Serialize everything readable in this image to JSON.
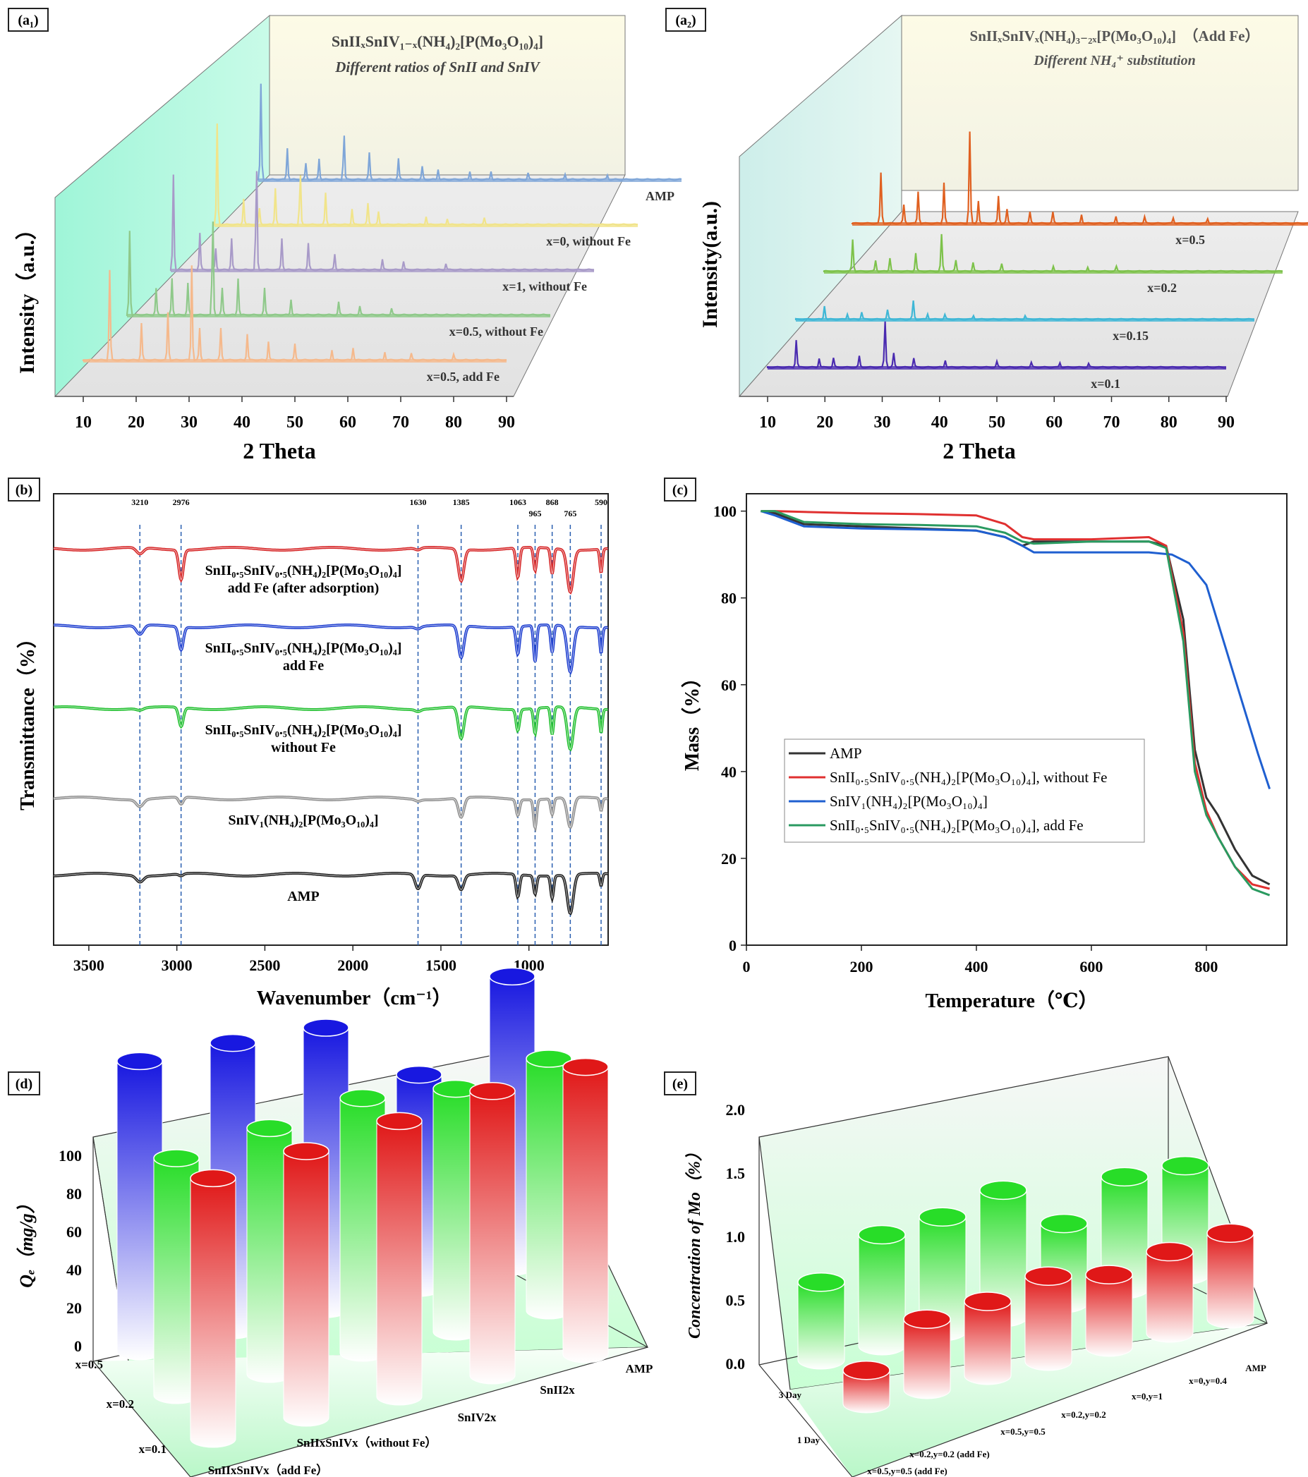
{
  "panels": {
    "a1": {
      "tag": "(a₁)",
      "title": "SnIIₓSnIV₁₋ₓ(NH₄)₂[P(Mo₃O₁₀)₄]",
      "subtitle": "Different ratios of SnII and SnIV",
      "xlabel": "2 Theta",
      "ylabel": "Intensity（a.u.）"
    },
    "a2": {
      "tag": "(a₂)",
      "title": "SnIIₓSnIVₓ(NH₄)₃₋₂ₓ[P(Mo₃O₁₀)₄]　（Add  Fe）",
      "subtitle": "Different NH₄⁺ substitution",
      "xlabel": "2 Theta",
      "ylabel": "Intensity(a.u.)"
    },
    "b": {
      "tag": "(b)",
      "xlabel": "Wavenumber（cm⁻¹）",
      "ylabel": "Transmittance（%）"
    },
    "c": {
      "tag": "(c)",
      "xlabel": "Temperature（℃）",
      "ylabel": "Mass（%）"
    },
    "d": {
      "tag": "(d)",
      "ylabel": "Qₑ（mg/g）"
    },
    "e": {
      "tag": "(e)",
      "ylabel": "Concentration of Mo（%）"
    }
  },
  "chart_data": [
    {
      "id": "a1",
      "type": "line",
      "title": "SnIIₓSnIV₁₋ₓ(NH₄)₂[P(Mo₃O₁₀)₄]",
      "subtitle": "Different ratios of SnII and SnIV",
      "xlabel": "2 Theta",
      "ylabel": "Intensity（a.u.）",
      "xlim": [
        10,
        90
      ],
      "xticks": [
        10,
        20,
        30,
        40,
        50,
        60,
        70,
        80,
        90
      ],
      "series": [
        {
          "name": "AMP",
          "color": "#7fa6d8",
          "peaks": [
            [
              10.5,
              0.9
            ],
            [
              15.5,
              0.3
            ],
            [
              19,
              0.15
            ],
            [
              21.5,
              0.2
            ],
            [
              26.2,
              0.45
            ],
            [
              31,
              0.25
            ],
            [
              36.5,
              0.2
            ],
            [
              41,
              0.12
            ],
            [
              44,
              0.1
            ],
            [
              50,
              0.08
            ],
            [
              54,
              0.08
            ],
            [
              61,
              0.06
            ],
            [
              68,
              0.05
            ],
            [
              76,
              0.04
            ]
          ]
        },
        {
          "name": "x=0, without Fe",
          "color": "#f1e48a",
          "peaks": [
            [
              10.5,
              0.95
            ],
            [
              15.5,
              0.25
            ],
            [
              18.5,
              0.15
            ],
            [
              21.5,
              0.35
            ],
            [
              26.2,
              0.5
            ],
            [
              31,
              0.3
            ],
            [
              36,
              0.15
            ],
            [
              39,
              0.2
            ],
            [
              41,
              0.12
            ],
            [
              50,
              0.08
            ],
            [
              54,
              0.06
            ],
            [
              61,
              0.06
            ]
          ]
        },
        {
          "name": "x=1, without Fe",
          "color": "#a89ac8",
          "peaks": [
            [
              10.5,
              0.9
            ],
            [
              15.5,
              0.35
            ],
            [
              18.5,
              0.2
            ],
            [
              21.5,
              0.3
            ],
            [
              26.2,
              1.0
            ],
            [
              31,
              0.3
            ],
            [
              36,
              0.25
            ],
            [
              41,
              0.15
            ],
            [
              50,
              0.1
            ],
            [
              54,
              0.08
            ],
            [
              62,
              0.06
            ]
          ]
        },
        {
          "name": "x=0.5, without Fe",
          "color": "#8fc98a",
          "peaks": [
            [
              10.5,
              0.8
            ],
            [
              15.5,
              0.25
            ],
            [
              18.5,
              0.35
            ],
            [
              21.5,
              0.3
            ],
            [
              26.2,
              0.95
            ],
            [
              28,
              0.25
            ],
            [
              31,
              0.35
            ],
            [
              36,
              0.25
            ],
            [
              41,
              0.15
            ],
            [
              50,
              0.12
            ],
            [
              54,
              0.08
            ],
            [
              60,
              0.06
            ]
          ]
        },
        {
          "name": "x=0.5, add Fe",
          "color": "#f5b98c",
          "peaks": [
            [
              15,
              0.85
            ],
            [
              21,
              0.35
            ],
            [
              26,
              0.45
            ],
            [
              30.5,
              0.9
            ],
            [
              32,
              0.3
            ],
            [
              36,
              0.3
            ],
            [
              41,
              0.25
            ],
            [
              45,
              0.18
            ],
            [
              50,
              0.15
            ],
            [
              57,
              0.1
            ],
            [
              61,
              0.12
            ],
            [
              67,
              0.08
            ],
            [
              72,
              0.06
            ],
            [
              80,
              0.05
            ]
          ]
        }
      ]
    },
    {
      "id": "a2",
      "type": "line",
      "title": "SnIIₓSnIVₓ(NH₄)₃₋₂ₓ[P(Mo₃O₁₀)₄]　（Add  Fe）",
      "subtitle": "Different NH₄⁺ substitution",
      "xlabel": "2 Theta",
      "ylabel": "Intensity(a.u.)",
      "xlim": [
        10,
        90
      ],
      "xticks": [
        10,
        20,
        30,
        40,
        50,
        60,
        70,
        80,
        90
      ],
      "series": [
        {
          "name": "x=0.5",
          "color": "#e06020",
          "peaks": [
            [
              15,
              0.55
            ],
            [
              19,
              0.2
            ],
            [
              21.5,
              0.35
            ],
            [
              26,
              0.45
            ],
            [
              30.5,
              1.0
            ],
            [
              32,
              0.25
            ],
            [
              35.5,
              0.3
            ],
            [
              37,
              0.15
            ],
            [
              41,
              0.12
            ],
            [
              45,
              0.12
            ],
            [
              50,
              0.1
            ],
            [
              56,
              0.08
            ],
            [
              61,
              0.07
            ],
            [
              66,
              0.06
            ],
            [
              72,
              0.05
            ]
          ]
        },
        {
          "name": "x=0.2",
          "color": "#7dc24a",
          "peaks": [
            [
              15,
              0.35
            ],
            [
              19,
              0.12
            ],
            [
              21.5,
              0.15
            ],
            [
              26,
              0.2
            ],
            [
              30.5,
              0.4
            ],
            [
              33,
              0.12
            ],
            [
              36,
              0.1
            ],
            [
              41,
              0.08
            ],
            [
              50,
              0.06
            ],
            [
              56,
              0.05
            ],
            [
              61,
              0.05
            ]
          ]
        },
        {
          "name": "x=0.15",
          "color": "#3fb7d6",
          "peaks": [
            [
              15,
              0.15
            ],
            [
              19,
              0.06
            ],
            [
              21.5,
              0.08
            ],
            [
              26,
              0.1
            ],
            [
              30.5,
              0.2
            ],
            [
              33,
              0.06
            ],
            [
              36,
              0.05
            ],
            [
              41,
              0.04
            ],
            [
              50,
              0.04
            ]
          ]
        },
        {
          "name": "x=0.1",
          "color": "#4a2bb0",
          "peaks": [
            [
              15,
              0.3
            ],
            [
              19,
              0.1
            ],
            [
              21.5,
              0.1
            ],
            [
              26,
              0.12
            ],
            [
              30.5,
              0.5
            ],
            [
              32,
              0.15
            ],
            [
              35.5,
              0.1
            ],
            [
              41,
              0.08
            ],
            [
              50,
              0.06
            ],
            [
              56,
              0.05
            ],
            [
              61,
              0.05
            ],
            [
              66,
              0.04
            ]
          ]
        }
      ]
    },
    {
      "id": "b",
      "type": "line",
      "xlabel": "Wavenumber（cm⁻¹）",
      "ylabel": "Transmittance（%）",
      "xlim": [
        3700,
        550
      ],
      "xticks": [
        3500,
        3000,
        2500,
        2000,
        1500,
        1000
      ],
      "reference_lines": [
        3210,
        2976,
        1630,
        1385,
        1063,
        965,
        868,
        765,
        590
      ],
      "series": [
        {
          "name": "SnII₀.₅SnIV₀.₅(NH₄)₂[P(Mo₃O₁₀)₄]",
          "name2": "add Fe (after adsorption)",
          "color": "#d62728",
          "bands": [
            [
              3210,
              0.15
            ],
            [
              2976,
              0.7
            ],
            [
              1630,
              0.05
            ],
            [
              1385,
              0.75
            ],
            [
              1063,
              0.7
            ],
            [
              965,
              0.55
            ],
            [
              868,
              0.6
            ],
            [
              765,
              1.0
            ],
            [
              590,
              0.55
            ]
          ]
        },
        {
          "name": "SnII₀.₅SnIV₀.₅(NH₄)₂[P(Mo₃O₁₀)₄]",
          "name2": "add Fe",
          "color": "#2040d0",
          "bands": [
            [
              3210,
              0.2
            ],
            [
              2976,
              0.5
            ],
            [
              1630,
              0.05
            ],
            [
              1385,
              0.7
            ],
            [
              1063,
              0.6
            ],
            [
              965,
              0.8
            ],
            [
              868,
              0.6
            ],
            [
              765,
              1.0
            ],
            [
              590,
              0.55
            ]
          ]
        },
        {
          "name": "SnII₀.₅SnIV₀.₅(NH₄)₂[P(Mo₃O₁₀)₄]",
          "name2": "without Fe",
          "color": "#22c030",
          "bands": [
            [
              3210,
              0.05
            ],
            [
              2976,
              0.45
            ],
            [
              1630,
              0.05
            ],
            [
              1385,
              0.75
            ],
            [
              1063,
              0.5
            ],
            [
              965,
              0.6
            ],
            [
              868,
              0.65
            ],
            [
              765,
              1.0
            ],
            [
              590,
              0.55
            ]
          ]
        },
        {
          "name": "SnIV₁(NH₄)₂[P(Mo₃O₁₀)₄]",
          "name2": "",
          "color": "#909090",
          "bands": [
            [
              3210,
              0.2
            ],
            [
              2976,
              0.2
            ],
            [
              1630,
              0.05
            ],
            [
              1385,
              0.55
            ],
            [
              1063,
              0.45
            ],
            [
              965,
              0.8
            ],
            [
              868,
              0.45
            ],
            [
              765,
              0.85
            ],
            [
              590,
              0.35
            ]
          ]
        },
        {
          "name": "AMP",
          "name2": "",
          "color": "#202020",
          "bands": [
            [
              3210,
              0.15
            ],
            [
              2976,
              0.05
            ],
            [
              1630,
              0.35
            ],
            [
              1385,
              0.35
            ],
            [
              1063,
              0.55
            ],
            [
              965,
              0.45
            ],
            [
              868,
              0.55
            ],
            [
              765,
              0.95
            ],
            [
              590,
              0.3
            ]
          ]
        }
      ]
    },
    {
      "id": "c",
      "type": "line",
      "xlabel": "Temperature（℃）",
      "ylabel": "Mass（%）",
      "xlim": [
        0,
        940
      ],
      "ylim": [
        0,
        104
      ],
      "xticks": [
        0,
        200,
        400,
        600,
        800
      ],
      "yticks": [
        0,
        20,
        40,
        60,
        80,
        100
      ],
      "legend": "center-left",
      "series": [
        {
          "name": "AMP",
          "color": "#333333",
          "x": [
            25,
            50,
            100,
            200,
            300,
            400,
            450,
            480,
            500,
            600,
            700,
            730,
            760,
            780,
            800,
            820,
            850,
            880,
            910
          ],
          "y": [
            100,
            99.5,
            97,
            96.5,
            96,
            95.5,
            94,
            92,
            93,
            93,
            93,
            92,
            75,
            45,
            34,
            30,
            22,
            16,
            14
          ]
        },
        {
          "name": "SnII₀.₅SnIV₀.₅(NH₄)₂[P(Mo₃O₁₀)₄], without Fe",
          "color": "#e03030",
          "x": [
            25,
            50,
            100,
            200,
            300,
            400,
            450,
            480,
            500,
            600,
            700,
            730,
            760,
            780,
            800,
            820,
            850,
            880,
            910
          ],
          "y": [
            100,
            100,
            99.8,
            99.5,
            99.3,
            99,
            97,
            94,
            93.5,
            93.5,
            94,
            92,
            72,
            42,
            31,
            25,
            18,
            14,
            13
          ]
        },
        {
          "name": "SnIV₁(NH₄)₂[P(Mo₃O₁₀)₄]",
          "color": "#1f5fd0",
          "x": [
            25,
            50,
            100,
            200,
            300,
            400,
            450,
            480,
            500,
            600,
            700,
            740,
            770,
            800,
            830,
            860,
            890,
            910
          ],
          "y": [
            100,
            99,
            96.5,
            96,
            95.8,
            95.5,
            94,
            92,
            90.5,
            90.5,
            90.5,
            90,
            88,
            83,
            70,
            57,
            44,
            36
          ]
        },
        {
          "name": "SnII₀.₅SnIV₀.₅(NH₄)₂[P(Mo₃O₁₀)₄], add Fe",
          "color": "#2a9a60",
          "x": [
            25,
            50,
            100,
            200,
            300,
            400,
            450,
            480,
            500,
            600,
            700,
            730,
            760,
            780,
            800,
            820,
            850,
            880,
            910
          ],
          "y": [
            100,
            100,
            97.5,
            97,
            96.8,
            96.5,
            95,
            93,
            92.5,
            93,
            93,
            91.5,
            70,
            40,
            30,
            25,
            18,
            13,
            11.5
          ]
        }
      ]
    },
    {
      "id": "d",
      "type": "bar",
      "ylabel": "Qₑ（mg/g）",
      "ylim": [
        0,
        100
      ],
      "yticks": [
        0,
        20,
        40,
        60,
        80,
        100
      ],
      "categories": [
        "SnIIxSnIVx（add Fe）",
        "SnIIxSnIVx（without Fe）",
        "SnIV2x",
        "SnII2x",
        "AMP"
      ],
      "depth_categories": [
        "x=0.1",
        "x=0.2",
        "x=0.5"
      ],
      "series": [
        {
          "name": "x=0.1",
          "color": "#e01818",
          "values": [
            88,
            90,
            93,
            96,
            97
          ]
        },
        {
          "name": "x=0.2",
          "color": "#28dd28",
          "values": [
            80,
            83,
            86,
            82,
            85
          ]
        },
        {
          "name": "x=0.5",
          "color": "#1818e0",
          "values": [
            98,
            97,
            95,
            72,
            98
          ]
        }
      ]
    },
    {
      "id": "e",
      "type": "bar",
      "ylabel": "Concentration of Mo（%）",
      "ylim": [
        0,
        2.0
      ],
      "yticks": [
        "0.0",
        "0.5",
        "1.0",
        "1.5",
        "2.0"
      ],
      "categories": [
        "x=0.5,y=0.5 (add Fe)",
        "x=0.2,y=0.2 (add Fe)",
        "x=0.5,y=0.5",
        "x=0.2,y=0.2",
        "x=0,y=1",
        "x=0,y=0.4",
        "AMP"
      ],
      "depth_categories": [
        "1 Day",
        "3 Day"
      ],
      "series": [
        {
          "name": "1 Day",
          "color": "#e01818",
          "values": [
            0.45,
            0.95,
            1.0,
            1.15,
            0.98,
            1.1,
            1.16
          ]
        },
        {
          "name": "3 Day",
          "color": "#28dd28",
          "values": [
            1.05,
            1.5,
            1.55,
            1.72,
            1.08,
            1.52,
            1.48
          ]
        }
      ]
    }
  ]
}
